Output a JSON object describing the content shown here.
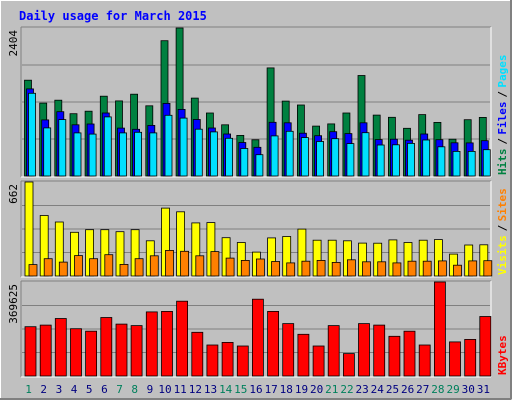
{
  "chart_data": {
    "type": "bar",
    "title": "Daily usage for March 2015",
    "categories": [
      "1",
      "2",
      "3",
      "4",
      "5",
      "6",
      "7",
      "8",
      "9",
      "10",
      "11",
      "12",
      "13",
      "14",
      "15",
      "16",
      "17",
      "18",
      "19",
      "20",
      "21",
      "22",
      "23",
      "24",
      "25",
      "26",
      "27",
      "28",
      "29",
      "30",
      "31"
    ],
    "weekend_days": [
      "1",
      "7",
      "8",
      "14",
      "15",
      "21",
      "22",
      "28",
      "29"
    ],
    "panels": [
      {
        "name": "top",
        "ymax_label": "2404",
        "ylim": [
          0,
          2404
        ],
        "right_labels": [
          {
            "text": "Pages",
            "color": "#00e0ff"
          },
          {
            "text": "Files",
            "color": "#0000ff"
          },
          {
            "text": "Hits",
            "color": "#008040"
          }
        ],
        "series": [
          {
            "name": "Hits",
            "color": "#008040",
            "values": [
              1556,
              1184,
              1232,
              1012,
              1052,
              1296,
              1220,
              1328,
              1140,
              2198,
              2404,
              1266,
              1024,
              832,
              660,
              588,
              1756,
              1216,
              1154,
              810,
              846,
              1024,
              1632,
              990,
              954,
              774,
              998,
              870,
              598,
              914,
              952
            ]
          },
          {
            "name": "Files",
            "color": "#0000ff",
            "values": [
              1414,
              912,
              1044,
              832,
              844,
              1024,
              778,
              758,
              822,
              1180,
              1082,
              918,
              780,
              682,
              544,
              466,
              872,
              864,
              696,
              654,
              720,
              688,
              864,
              592,
              598,
              582,
              682,
              590,
              540,
              538,
              574
            ]
          },
          {
            "name": "Pages",
            "color": "#00e0ff",
            "values": [
              1344,
              782,
              916,
              700,
              680,
              960,
              700,
              710,
              700,
              986,
              940,
              760,
              716,
              612,
              446,
              346,
              652,
              726,
              624,
              560,
              606,
              526,
              704,
              504,
              506,
              530,
              584,
              474,
              400,
              400,
              428
            ]
          }
        ]
      },
      {
        "name": "middle",
        "ymax_label": "662",
        "ylim": [
          0,
          662
        ],
        "right_labels": [
          {
            "text": "Sites",
            "color": "#ff8000"
          },
          {
            "text": "Visits",
            "color": "#ffff00"
          }
        ],
        "series": [
          {
            "name": "Visits",
            "color": "#ffff00",
            "values": [
              662,
              426,
              380,
              308,
              326,
              326,
              312,
              326,
              248,
              478,
              452,
              374,
              376,
              270,
              236,
              168,
              268,
              278,
              330,
              252,
              252,
              248,
              232,
              231,
              254,
              236,
              252,
              256,
              154,
              218,
              220
            ]
          },
          {
            "name": "Sites",
            "color": "#ff8000",
            "values": [
              80,
              122,
              98,
              144,
              122,
              150,
              82,
              122,
              142,
              180,
              174,
              142,
              172,
              126,
              110,
              120,
              102,
              92,
              104,
              110,
              96,
              114,
              100,
              100,
              92,
              104,
              104,
              106,
              76,
              106,
              108
            ]
          }
        ]
      },
      {
        "name": "bottom",
        "ymax_label": "369625",
        "ylim": [
          0,
          369625
        ],
        "right_labels": [
          {
            "text": "KBytes",
            "color": "#ff0000"
          }
        ],
        "series": [
          {
            "name": "KBytes",
            "color": "#ff0000",
            "values": [
              194000,
              200000,
              226000,
              186000,
              176000,
              230000,
              204000,
              198000,
              252000,
              254000,
              294000,
              172000,
              122000,
              132000,
              118000,
              302000,
              254000,
              206000,
              164000,
              118000,
              198000,
              88000,
              206000,
              200000,
              156000,
              176000,
              122000,
              369625,
              134000,
              144000,
              234000
            ]
          }
        ]
      }
    ]
  },
  "colors": {
    "background": "#c0c0c0",
    "frame_light": "#ffffff",
    "frame_dark": "#808080",
    "title_color": "#0000ff",
    "weekday_label": "#000080",
    "weekend_label": "#00805c",
    "gridline": "#808080"
  }
}
